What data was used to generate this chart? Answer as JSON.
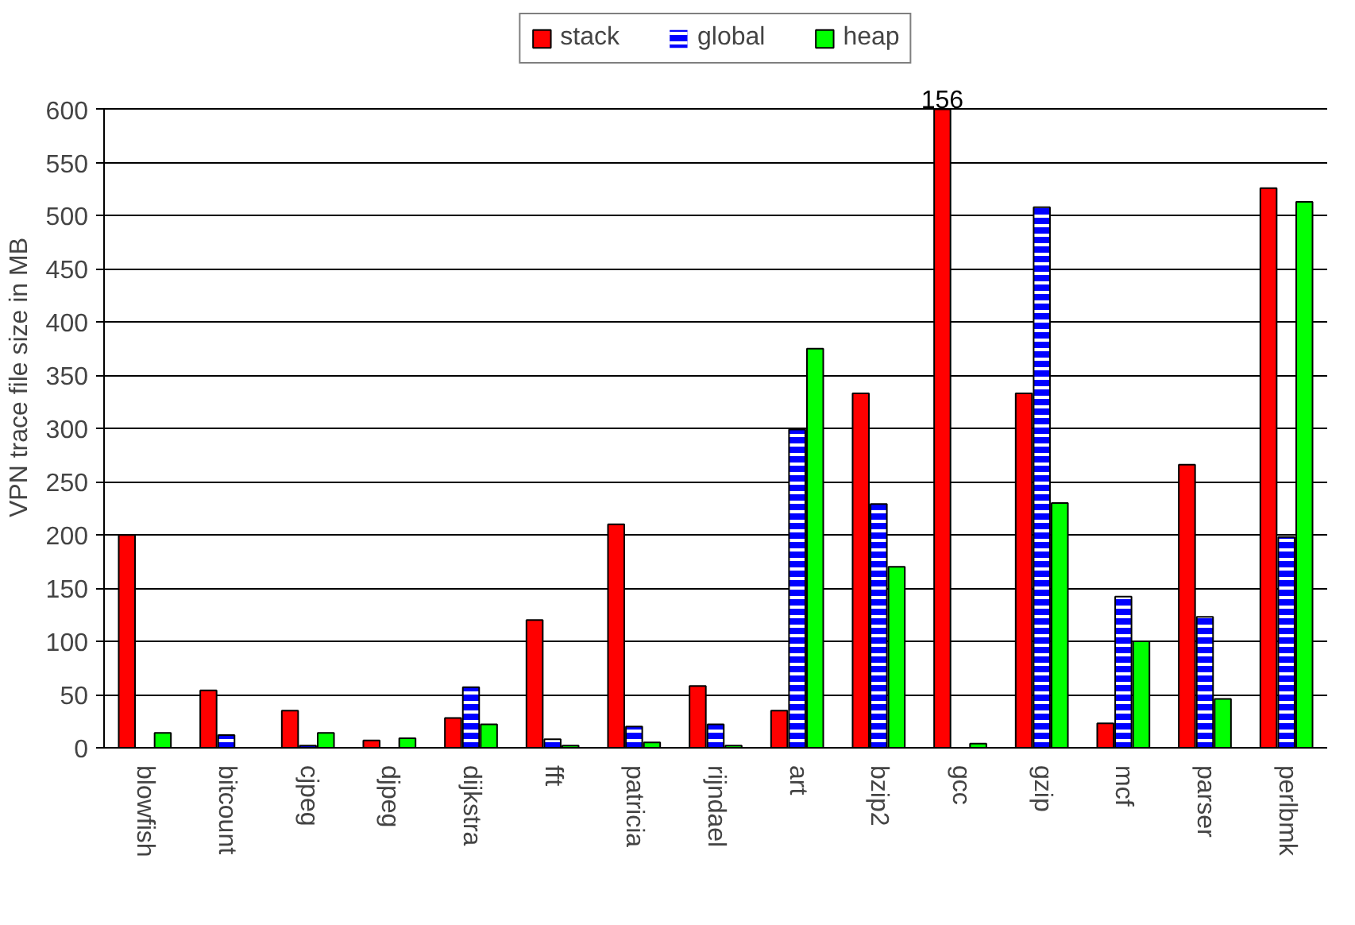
{
  "chart_data": {
    "type": "bar",
    "ylabel": "VPN trace file size in MB",
    "categories": [
      "blowfish",
      "bitcount",
      "cjpeg",
      "djpeg",
      "dijkstra",
      "fft",
      "patricia",
      "rijndael",
      "art",
      "bzip2",
      "gcc",
      "gzip",
      "mcf",
      "parser",
      "perlbmk"
    ],
    "series": [
      {
        "name": "stack",
        "color": "#ff0000",
        "values": [
          200,
          54,
          35,
          7,
          28,
          120,
          210,
          58,
          35,
          333,
          600,
          333,
          23,
          266,
          526
        ]
      },
      {
        "name": "global",
        "color": "#0000ff",
        "values": [
          0,
          12,
          2,
          0,
          57,
          8,
          20,
          22,
          299,
          229,
          null,
          508,
          142,
          123,
          198
        ]
      },
      {
        "name": "heap",
        "color": "#00ff00",
        "values": [
          14,
          0,
          14,
          9,
          22,
          2,
          5,
          2,
          375,
          170,
          4,
          230,
          100,
          46,
          513
        ]
      }
    ],
    "ylim": [
      0,
      600
    ],
    "yticks": [
      0,
      50,
      100,
      150,
      200,
      250,
      300,
      350,
      400,
      450,
      500,
      550,
      600
    ],
    "grid": "y",
    "legend": "top",
    "annotations": [
      "156"
    ]
  }
}
